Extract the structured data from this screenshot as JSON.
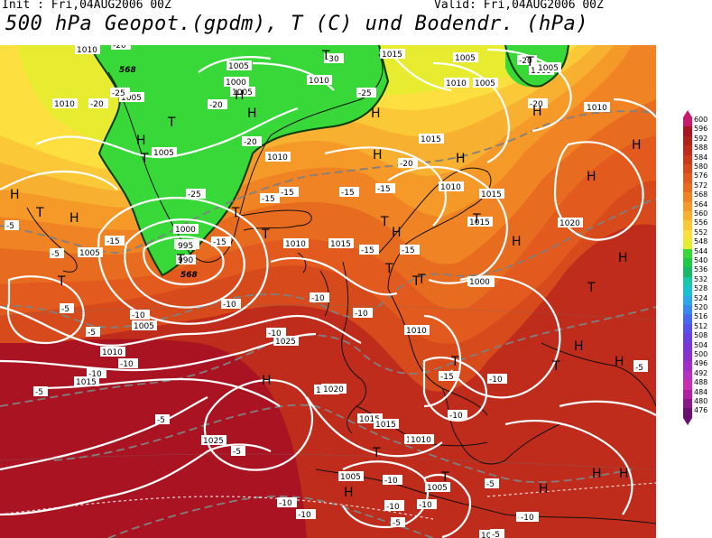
{
  "header": {
    "init": "Init : Fri,04AUG2006 00Z",
    "valid": "Valid: Fri,04AUG2006 00Z",
    "title": "500 hPa Geopot.(gpdm), T (C) und Bodendr. (hPa)"
  },
  "colorbar": {
    "levels": [
      "600",
      "596",
      "592",
      "588",
      "584",
      "580",
      "576",
      "572",
      "568",
      "564",
      "560",
      "556",
      "552",
      "548",
      "544",
      "540",
      "536",
      "532",
      "528",
      "524",
      "520",
      "516",
      "512",
      "508",
      "504",
      "500",
      "496",
      "492",
      "488",
      "484",
      "480",
      "476"
    ],
    "colors": [
      "#c81a6c",
      "#aa1422",
      "#b2211d",
      "#c02c1c",
      "#cc3a1c",
      "#d64a1c",
      "#e25a1e",
      "#e86c20",
      "#f08424",
      "#f59a28",
      "#f8b030",
      "#fbc838",
      "#fde040",
      "#e8ec30",
      "#38d838",
      "#20c848",
      "#18b86c",
      "#16c8a8",
      "#18c0d0",
      "#2aa8ea",
      "#3888f0",
      "#4868f0",
      "#5850e8",
      "#6a40e0",
      "#7a36d8",
      "#8a30d0",
      "#a030c8",
      "#b830c0",
      "#c830b0",
      "#b020a0",
      "#8a1888",
      "#6a1070"
    ]
  },
  "map_labels": {
    "isobars": [
      "1010",
      "1005",
      "1000",
      "1005",
      "1010",
      "1015",
      "1005",
      "1000",
      "1005",
      "1010",
      "1010",
      "1005",
      "1000",
      "1005",
      "1005",
      "1010",
      "1015",
      "1015",
      "1010",
      "1010",
      "1015",
      "1005",
      "1000",
      "995",
      "990",
      "1005",
      "1010",
      "1015",
      "1010",
      "1025",
      "1020",
      "1020",
      "1015",
      "1025",
      "1010",
      "1015",
      "1005",
      "1010",
      "1005",
      "1015",
      "1020",
      "1010",
      "1005",
      "1010",
      "1005",
      "1010"
    ],
    "temperatures": [
      "-20",
      "-20",
      "-25",
      "-30",
      "-25",
      "-20",
      "-20",
      "-20",
      "-25",
      "-20",
      "-15",
      "-15",
      "-15",
      "-15",
      "-15",
      "-15",
      "-20",
      "-15",
      "-15",
      "-10",
      "-10",
      "-10",
      "-10",
      "-10",
      "-10",
      "-10",
      "-5",
      "-5",
      "-5",
      "-5",
      "-5",
      "-5",
      "-5",
      "-10",
      "-10",
      "-10",
      "-10",
      "-5",
      "-10",
      "-10",
      "-5",
      "-5",
      "-5",
      "-5",
      "-5",
      "-5",
      "-10",
      "-10",
      "-15",
      "-10"
    ],
    "geopotential_marks": [
      "568",
      "568"
    ],
    "high_symbol": "H",
    "low_symbol": "T"
  }
}
